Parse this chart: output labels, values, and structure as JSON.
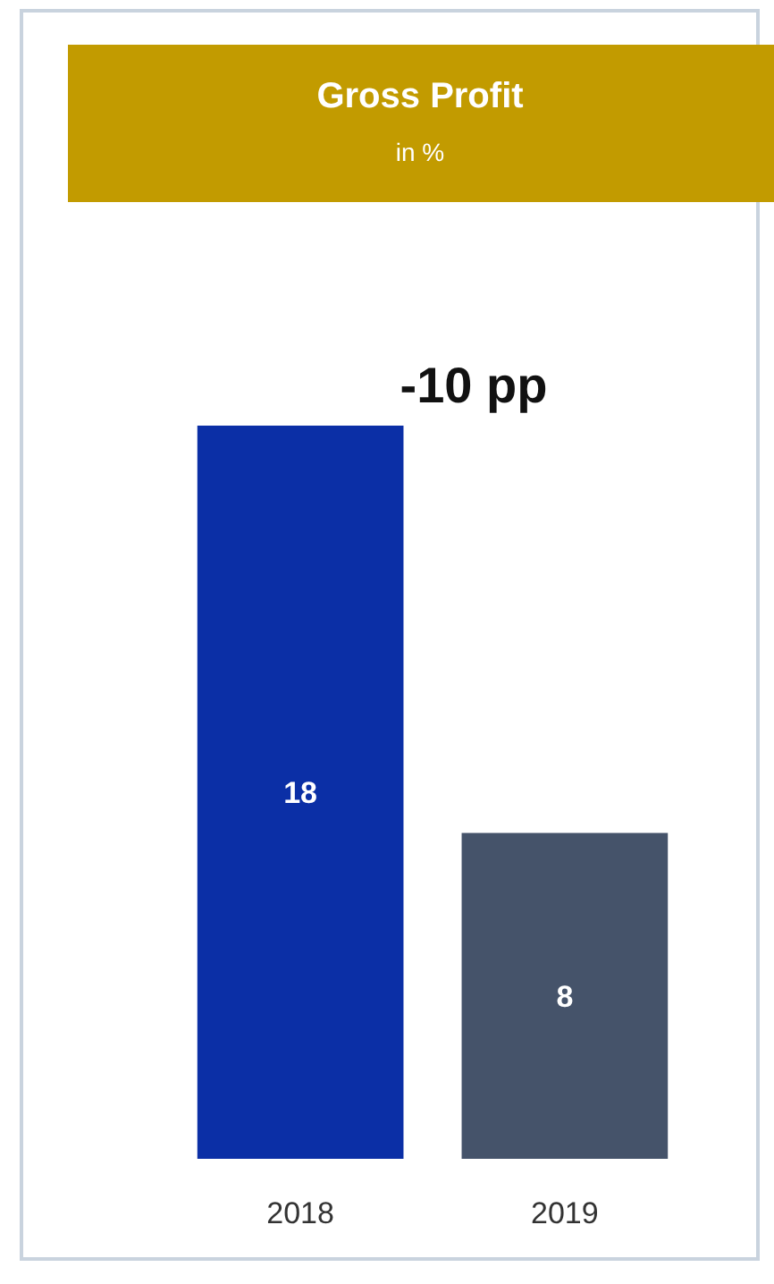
{
  "chart_data": {
    "type": "bar",
    "title": "Gross Profit",
    "subtitle": "in %",
    "categories": [
      "2018",
      "2019"
    ],
    "values": [
      18,
      8
    ],
    "colors": [
      "#0b2fa6",
      "#45536a"
    ],
    "data_labels": true,
    "annotations": [
      "-10 pp"
    ]
  }
}
